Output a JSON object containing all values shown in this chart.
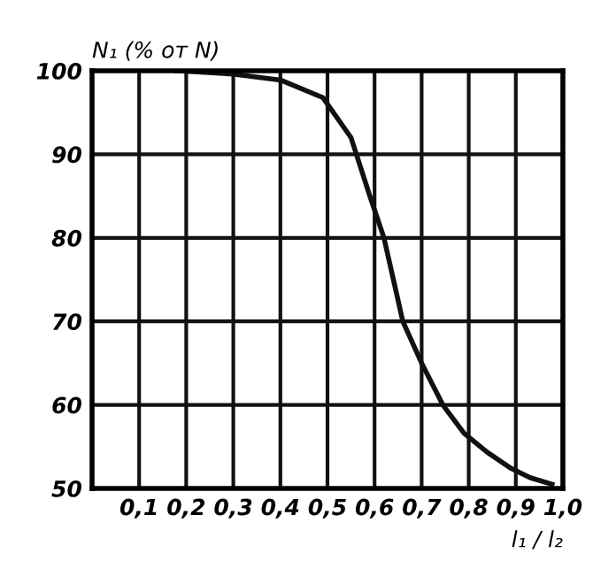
{
  "chart_data": {
    "type": "line",
    "xlabel": "l₁ / l₂",
    "ylabel": "N₁ (% от N)",
    "x": [
      0.18,
      0.3,
      0.4,
      0.49,
      0.55,
      0.59,
      0.62,
      0.66,
      0.7,
      0.745,
      0.79,
      0.84,
      0.89,
      0.93,
      0.977
    ],
    "series": [
      {
        "color": "#111111",
        "values": [
          100,
          99.6,
          98.9,
          96.8,
          92,
          85,
          80,
          70,
          65,
          60,
          56.6,
          54.3,
          52.4,
          51.3,
          50.5
        ]
      }
    ],
    "xlim": [
      0,
      1.0
    ],
    "ylim": [
      50,
      100
    ],
    "xticks": [
      {
        "value": 0.1,
        "label": "0,1"
      },
      {
        "value": 0.2,
        "label": "0,2"
      },
      {
        "value": 0.3,
        "label": "0,3"
      },
      {
        "value": 0.4,
        "label": "0,4"
      },
      {
        "value": 0.5,
        "label": "0,5"
      },
      {
        "value": 0.6,
        "label": "0,6"
      },
      {
        "value": 0.7,
        "label": "0,7"
      },
      {
        "value": 0.8,
        "label": "0,8"
      },
      {
        "value": 0.9,
        "label": "0,9"
      },
      {
        "value": 1.0,
        "label": "1,0"
      }
    ],
    "yticks": [
      50,
      60,
      70,
      80,
      90,
      100
    ],
    "grid": true,
    "marker": "none",
    "line_style": "solid"
  }
}
